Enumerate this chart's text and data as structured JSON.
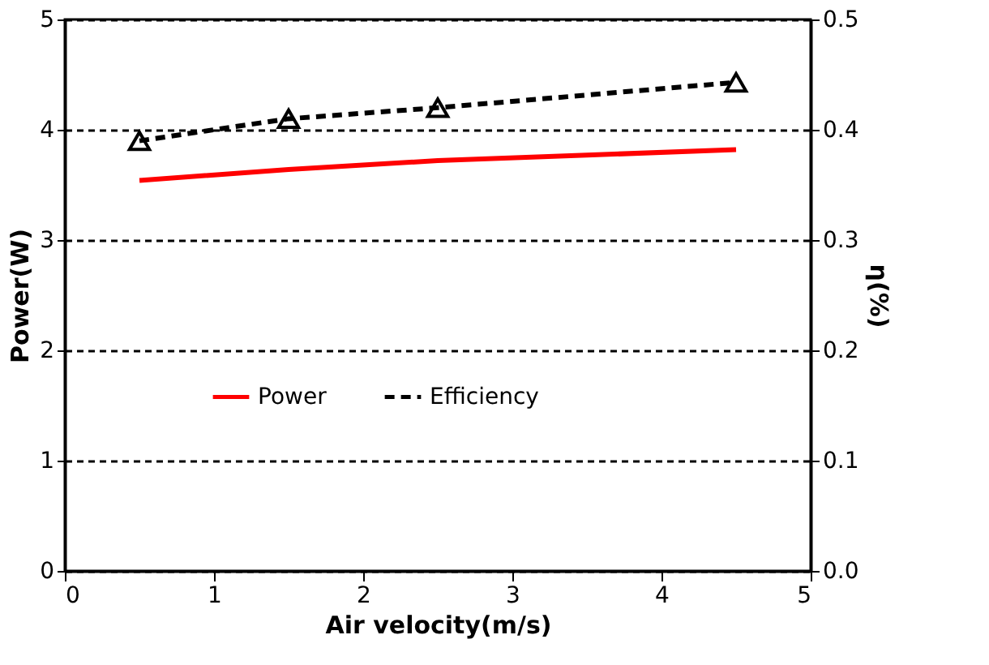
{
  "chart_data": {
    "type": "line",
    "xlabel": "Air velocity(m/s)",
    "ylabel": "Power(W)",
    "y2label": "η(%)",
    "xlim": [
      0,
      5
    ],
    "xticks": [
      0,
      1,
      2,
      3,
      4,
      5
    ],
    "ylim": [
      0,
      5
    ],
    "yticks": [
      0,
      1,
      2,
      3,
      4,
      5
    ],
    "y2lim": [
      0,
      0.5
    ],
    "y2ticks": [
      {
        "value": 0,
        "label": "0.0"
      },
      0.1,
      0.2,
      0.3,
      0.4,
      0.5
    ],
    "grid": "y",
    "legend": "center",
    "series": [
      {
        "name": "Power",
        "color": "#ff0000",
        "line_style": "solid",
        "marker": "none",
        "x": [
          0.5,
          1.5,
          2.5,
          3.5,
          4.5
        ],
        "values": [
          3.54,
          3.64,
          3.72,
          3.77,
          3.82
        ]
      },
      {
        "name": "Efficiency",
        "color": "#000000",
        "line_style": "dashed",
        "marker": "triangle",
        "axis": "y2",
        "x": [
          0.5,
          1.5,
          2.5,
          4.5
        ],
        "values": [
          0.39,
          0.41,
          0.42,
          0.443
        ]
      }
    ]
  }
}
